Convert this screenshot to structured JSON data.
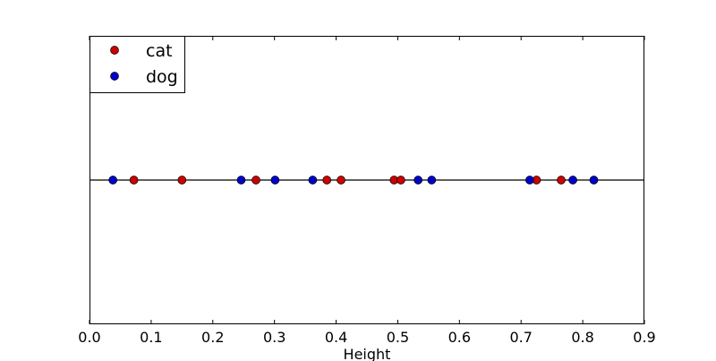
{
  "chart_data": {
    "type": "scatter",
    "xlabel": "Height",
    "xlim": [
      0.0,
      0.9
    ],
    "ylim": [
      -1,
      1
    ],
    "xticks": [
      "0.0",
      "0.1",
      "0.2",
      "0.3",
      "0.4",
      "0.5",
      "0.6",
      "0.7",
      "0.8",
      "0.9"
    ],
    "grid": false,
    "baseline_y": 0,
    "legend": "top-left",
    "series": [
      {
        "name": "cat",
        "color": "#cc0000",
        "x": [
          0.072,
          0.15,
          0.27,
          0.385,
          0.408,
          0.494,
          0.505,
          0.725,
          0.765
        ],
        "y": [
          0,
          0,
          0,
          0,
          0,
          0,
          0,
          0,
          0
        ]
      },
      {
        "name": "dog",
        "color": "#0000cc",
        "x": [
          0.038,
          0.246,
          0.301,
          0.362,
          0.533,
          0.555,
          0.714,
          0.784,
          0.818
        ],
        "y": [
          0,
          0,
          0,
          0,
          0,
          0,
          0,
          0,
          0
        ]
      }
    ]
  }
}
